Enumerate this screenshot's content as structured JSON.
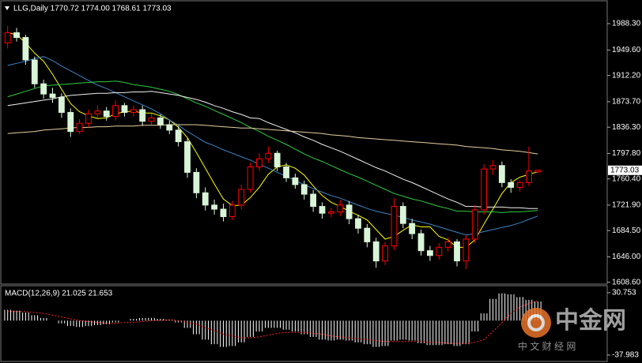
{
  "chart_data": {
    "type": "candlestick",
    "title": "LLG,Daily 1770.72 1774.00 1768.61 1773.03",
    "up_color": "#ff0000",
    "down_color": "#d8f5d8",
    "open": [
      1960,
      1975,
      1968,
      1935,
      1900,
      1885,
      1880,
      1858,
      1830,
      1842,
      1856,
      1860,
      1852,
      1868,
      1858,
      1862,
      1845,
      1850,
      1840,
      1832,
      1815,
      1770,
      1740,
      1722,
      1716,
      1705,
      1722,
      1745,
      1778,
      1790,
      1798,
      1778,
      1762,
      1752,
      1738,
      1720,
      1710,
      1712,
      1722,
      1702,
      1688,
      1668,
      1640,
      1662,
      1720,
      1695,
      1680,
      1655,
      1648,
      1660,
      1668,
      1640,
      1672,
      1715,
      1775,
      1780,
      1755,
      1748,
      1755,
      1770.72
    ],
    "high": [
      1985,
      1982,
      1972,
      1940,
      1906,
      1894,
      1886,
      1864,
      1848,
      1862,
      1868,
      1866,
      1876,
      1872,
      1868,
      1868,
      1856,
      1855,
      1846,
      1838,
      1820,
      1776,
      1748,
      1730,
      1724,
      1728,
      1752,
      1784,
      1798,
      1808,
      1802,
      1784,
      1768,
      1758,
      1744,
      1726,
      1718,
      1730,
      1728,
      1708,
      1694,
      1674,
      1668,
      1732,
      1726,
      1702,
      1686,
      1662,
      1666,
      1675,
      1672,
      1678,
      1722,
      1782,
      1788,
      1786,
      1760,
      1758,
      1808,
      1774.0
    ],
    "low": [
      1952,
      1962,
      1928,
      1894,
      1878,
      1872,
      1850,
      1822,
      1826,
      1836,
      1850,
      1846,
      1846,
      1852,
      1852,
      1838,
      1840,
      1834,
      1826,
      1808,
      1762,
      1732,
      1714,
      1708,
      1698,
      1700,
      1716,
      1740,
      1772,
      1784,
      1772,
      1756,
      1746,
      1730,
      1712,
      1702,
      1704,
      1706,
      1694,
      1680,
      1660,
      1630,
      1634,
      1656,
      1688,
      1672,
      1648,
      1640,
      1642,
      1654,
      1632,
      1628,
      1666,
      1708,
      1766,
      1748,
      1740,
      1742,
      1750,
      1768.61
    ],
    "close": [
      1975,
      1968,
      1935,
      1900,
      1885,
      1880,
      1858,
      1830,
      1842,
      1856,
      1860,
      1852,
      1868,
      1858,
      1862,
      1845,
      1850,
      1840,
      1832,
      1815,
      1770,
      1740,
      1722,
      1716,
      1705,
      1722,
      1745,
      1778,
      1790,
      1798,
      1778,
      1762,
      1752,
      1738,
      1720,
      1710,
      1712,
      1722,
      1702,
      1688,
      1668,
      1640,
      1662,
      1720,
      1695,
      1680,
      1655,
      1648,
      1660,
      1668,
      1640,
      1672,
      1715,
      1775,
      1780,
      1755,
      1748,
      1755,
      1772,
      1773.03
    ],
    "last_label": "1773.03",
    "series": [
      {
        "color": "#ffff00",
        "values": [
          1975,
          1972,
          1960,
          1945,
          1933,
          1914,
          1892,
          1871,
          1859,
          1853,
          1849,
          1850,
          1856,
          1859,
          1860,
          1857,
          1857,
          1853,
          1847,
          1836,
          1821,
          1799,
          1776,
          1753,
          1731,
          1721,
          1722,
          1733,
          1748,
          1767,
          1778,
          1781,
          1776,
          1766,
          1750,
          1736,
          1726,
          1720,
          1713,
          1707,
          1700,
          1686,
          1672,
          1676,
          1685,
          1693,
          1690,
          1690,
          1676,
          1671,
          1660,
          1660,
          1671,
          1694,
          1716,
          1739,
          1755,
          1763,
          1767,
          1771
        ]
      },
      {
        "color": "#3d85c6",
        "values": [
          1927,
          1930,
          1933,
          1937,
          1940,
          1934,
          1926,
          1919,
          1912,
          1905,
          1898,
          1893,
          1887,
          1881,
          1875,
          1869,
          1863,
          1856,
          1847,
          1839,
          1830,
          1822,
          1814,
          1809,
          1803,
          1798,
          1793,
          1788,
          1782,
          1776,
          1770,
          1764,
          1758,
          1752,
          1746,
          1741,
          1736,
          1732,
          1727,
          1722,
          1717,
          1713,
          1710,
          1707,
          1704,
          1700,
          1697,
          1694,
          1690,
          1686,
          1682,
          1678,
          1680,
          1683,
          1686,
          1689,
          1692,
          1696,
          1701,
          1706
        ]
      },
      {
        "color": "#2ecc40",
        "values": [
          1881,
          1885,
          1889,
          1893,
          1897,
          1898,
          1899,
          1900,
          1901,
          1902,
          1903,
          1903,
          1904,
          1902,
          1899,
          1897,
          1895,
          1892,
          1889,
          1884,
          1878,
          1872,
          1867,
          1861,
          1855,
          1849,
          1843,
          1836,
          1830,
          1823,
          1817,
          1811,
          1804,
          1797,
          1791,
          1786,
          1780,
          1774,
          1768,
          1763,
          1757,
          1751,
          1745,
          1739,
          1735,
          1731,
          1728,
          1724,
          1720,
          1717,
          1713,
          1713,
          1712,
          1712,
          1712,
          1711,
          1712,
          1712,
          1713,
          1714
        ]
      },
      {
        "color": "#f0f0f0",
        "values": [
          1868,
          1870,
          1872,
          1874,
          1876,
          1878,
          1881,
          1883,
          1884,
          1885,
          1886,
          1886,
          1887,
          1887,
          1888,
          1888,
          1889,
          1887,
          1885,
          1883,
          1880,
          1877,
          1873,
          1868,
          1864,
          1859,
          1855,
          1850,
          1849,
          1843,
          1838,
          1833,
          1828,
          1822,
          1817,
          1811,
          1806,
          1801,
          1795,
          1789,
          1783,
          1777,
          1772,
          1766,
          1760,
          1755,
          1749,
          1743,
          1737,
          1731,
          1726,
          1720,
          1720,
          1719,
          1719,
          1719,
          1718,
          1718,
          1717,
          1717
        ]
      },
      {
        "color": "#e6cfa0",
        "values": [
          1827,
          1828,
          1829,
          1830,
          1832,
          1833,
          1834,
          1835,
          1836,
          1836,
          1837,
          1837,
          1838,
          1838,
          1838,
          1839,
          1839,
          1839,
          1840,
          1840,
          1840,
          1840,
          1839,
          1838,
          1837,
          1836,
          1835,
          1835,
          1834,
          1833,
          1832,
          1831,
          1830,
          1829,
          1828,
          1827,
          1825,
          1824,
          1823,
          1821,
          1820,
          1819,
          1818,
          1817,
          1816,
          1815,
          1814,
          1813,
          1812,
          1811,
          1810,
          1808,
          1807,
          1806,
          1805,
          1803,
          1802,
          1801,
          1799,
          1797
        ]
      }
    ],
    "ylim": [
      1606,
      2023
    ],
    "yticks": [
      {
        "value": 1988.3,
        "label": "1988.30"
      },
      {
        "value": 1949.6,
        "label": "1949.60"
      },
      {
        "value": 1912.2,
        "label": "1912.20"
      },
      {
        "value": 1873.7,
        "label": "1873.70"
      },
      {
        "value": 1836.3,
        "label": "1836.30"
      },
      {
        "value": 1797.8,
        "label": "1797.80"
      },
      {
        "value": 1760.4,
        "label": "1760.40"
      },
      {
        "value": 1721.9,
        "label": "1721.90"
      },
      {
        "value": 1684.5,
        "label": "1684.50"
      },
      {
        "value": 1646.0,
        "label": "1646.00"
      },
      {
        "value": 1608.6,
        "label": "1608.60"
      }
    ],
    "macd": {
      "title": "MACD(12,26,9) 21.025 21.653",
      "main_color": "#ffffff",
      "signal_color": "#ff2020",
      "main": [
        12,
        11,
        9,
        6,
        3,
        0,
        -3,
        -6,
        -7,
        -6,
        -5,
        -4,
        -2,
        0,
        2,
        3,
        3,
        2,
        1,
        -2,
        -8,
        -15,
        -21,
        -26,
        -29,
        -28,
        -24,
        -18,
        -12,
        -8,
        -8,
        -10,
        -12,
        -15,
        -18,
        -21,
        -22,
        -21,
        -22,
        -24,
        -26,
        -29,
        -28,
        -22,
        -21,
        -22,
        -25,
        -27,
        -27,
        -26,
        -28,
        -26,
        -12,
        8,
        24,
        30,
        29,
        26,
        23,
        21.025
      ],
      "signal": [
        10,
        10,
        10,
        9,
        8,
        6,
        4,
        2,
        0,
        -1,
        -2,
        -3,
        -3,
        -2,
        -2,
        -1,
        0,
        0,
        1,
        0,
        -2,
        -4,
        -8,
        -11,
        -15,
        -17,
        -19,
        -19,
        -18,
        -16,
        -14,
        -13,
        -13,
        -13,
        -14,
        -15,
        -17,
        -18,
        -19,
        -20,
        -21,
        -22,
        -23,
        -23,
        -23,
        -23,
        -23,
        -24,
        -24,
        -25,
        -25,
        -25,
        -24,
        -21,
        -12,
        -2,
        8,
        15,
        19,
        21.653
      ],
      "ylim": [
        -45,
        37.7
      ],
      "yticks": [
        30.753,
        -37.983
      ]
    },
    "watermark": {
      "brand": "中金网",
      "tagline": "中 文 财 经 网"
    }
  }
}
